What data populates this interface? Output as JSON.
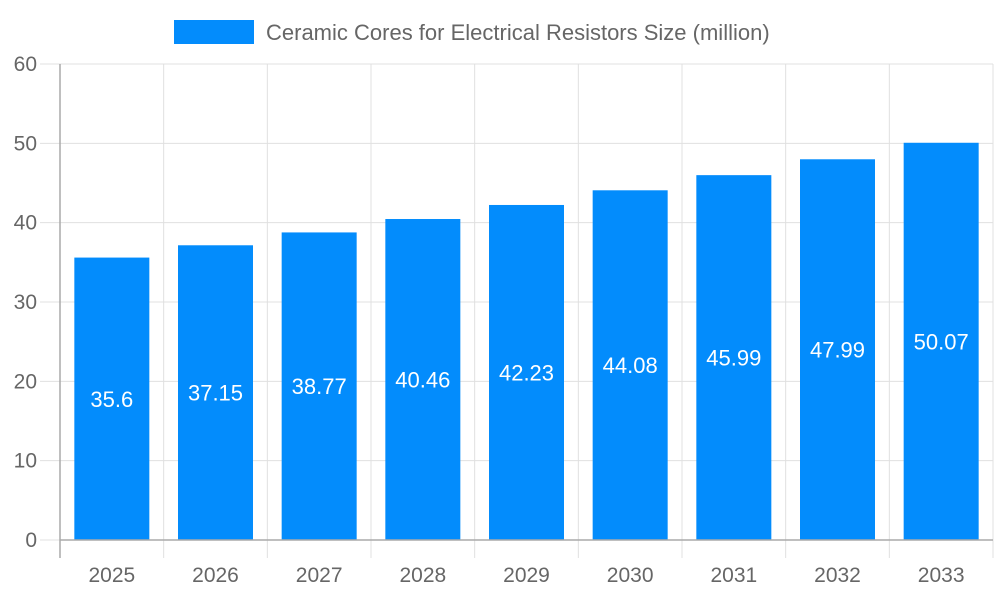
{
  "chart_data": {
    "type": "bar",
    "title": "",
    "legend": {
      "position": "top",
      "entries": [
        "Ceramic Cores for Electrical Resistors Size (million)"
      ]
    },
    "categories": [
      "2025",
      "2026",
      "2027",
      "2028",
      "2029",
      "2030",
      "2031",
      "2032",
      "2033"
    ],
    "series": [
      {
        "name": "Ceramic Cores for Electrical Resistors Size (million)",
        "values": [
          35.6,
          37.15,
          38.77,
          40.46,
          42.23,
          44.08,
          45.99,
          47.99,
          50.07
        ],
        "labels": [
          "35.6",
          "37.15",
          "38.77",
          "40.46",
          "42.23",
          "44.08",
          "45.99",
          "47.99",
          "50.07"
        ],
        "color": "#038cfc"
      }
    ],
    "xlabel": "",
    "ylabel": "",
    "ylim": [
      0,
      60
    ],
    "yticks": [
      "0",
      "10",
      "20",
      "30",
      "40",
      "50",
      "60"
    ],
    "grid": true
  }
}
